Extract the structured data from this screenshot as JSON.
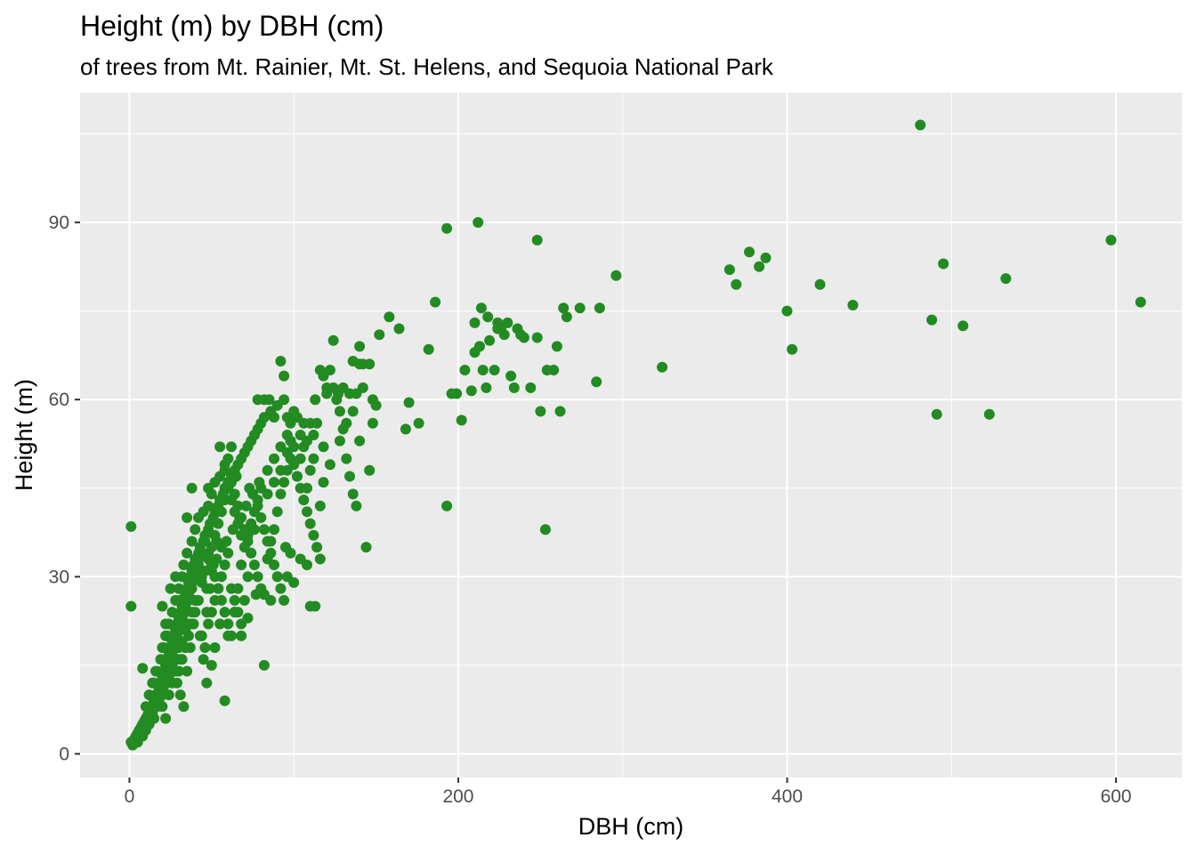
{
  "chart_data": {
    "type": "scatter",
    "title": "Height (m) by DBH (cm)",
    "subtitle": "of trees from Mt. Rainier, Mt. St. Helens, and Sequoia National Park",
    "xlabel": "DBH (cm)",
    "ylabel": "Height (m)",
    "xlim": [
      -30,
      640
    ],
    "ylim": [
      -4,
      112
    ],
    "x_ticks": [
      0,
      200,
      400,
      600
    ],
    "y_ticks": [
      0,
      30,
      60,
      90
    ],
    "x_tick_labels": [
      "0",
      "200",
      "400",
      "600"
    ],
    "y_tick_labels": [
      "0",
      "30",
      "60",
      "90"
    ],
    "grid": true,
    "legend": "none",
    "colors": {
      "point": "#228b22",
      "panel": "#ebebeb",
      "grid": "#ffffff"
    },
    "points": [
      [
        1,
        2
      ],
      [
        2,
        1.5
      ],
      [
        3,
        2.5
      ],
      [
        4,
        3
      ],
      [
        5,
        3.5
      ],
      [
        5,
        2
      ],
      [
        6,
        4
      ],
      [
        7,
        4.5
      ],
      [
        8,
        5
      ],
      [
        8,
        3
      ],
      [
        9,
        5.5
      ],
      [
        10,
        6
      ],
      [
        10,
        4
      ],
      [
        11,
        6.5
      ],
      [
        12,
        7
      ],
      [
        12,
        5
      ],
      [
        13,
        8
      ],
      [
        14,
        7
      ],
      [
        15,
        9
      ],
      [
        15,
        6
      ],
      [
        16,
        10
      ],
      [
        17,
        8
      ],
      [
        18,
        11
      ],
      [
        18,
        9
      ],
      [
        19,
        12
      ],
      [
        20,
        13
      ],
      [
        20,
        10
      ],
      [
        21,
        14
      ],
      [
        22,
        15
      ],
      [
        22,
        12
      ],
      [
        23,
        16
      ],
      [
        24,
        17
      ],
      [
        24,
        13
      ],
      [
        25,
        18
      ],
      [
        26,
        19
      ],
      [
        26,
        15
      ],
      [
        27,
        20
      ],
      [
        28,
        21
      ],
      [
        28,
        16
      ],
      [
        29,
        22
      ],
      [
        30,
        23
      ],
      [
        30,
        18
      ],
      [
        31,
        24
      ],
      [
        32,
        25
      ],
      [
        32,
        19
      ],
      [
        33,
        26
      ],
      [
        34,
        27
      ],
      [
        34,
        21
      ],
      [
        35,
        28
      ],
      [
        36,
        29
      ],
      [
        36,
        22
      ],
      [
        37,
        30
      ],
      [
        38,
        31
      ],
      [
        38,
        24
      ],
      [
        39,
        32
      ],
      [
        40,
        33
      ],
      [
        40,
        26
      ],
      [
        42,
        34
      ],
      [
        43,
        35
      ],
      [
        44,
        30
      ],
      [
        45,
        36
      ],
      [
        46,
        37
      ],
      [
        47,
        28
      ],
      [
        48,
        38
      ],
      [
        49,
        39
      ],
      [
        50,
        31
      ],
      [
        51,
        40
      ],
      [
        52,
        41
      ],
      [
        53,
        33
      ],
      [
        54,
        42
      ],
      [
        55,
        43
      ],
      [
        56,
        35
      ],
      [
        57,
        44
      ],
      [
        58,
        45
      ],
      [
        59,
        36
      ],
      [
        60,
        46
      ],
      [
        62,
        47
      ],
      [
        63,
        38
      ],
      [
        64,
        48
      ],
      [
        66,
        49
      ],
      [
        67,
        40
      ],
      [
        68,
        50
      ],
      [
        70,
        51
      ],
      [
        71,
        42
      ],
      [
        72,
        52
      ],
      [
        74,
        53
      ],
      [
        75,
        44
      ],
      [
        76,
        54
      ],
      [
        78,
        55
      ],
      [
        79,
        46
      ],
      [
        80,
        56
      ],
      [
        82,
        57
      ],
      [
        84,
        48
      ],
      [
        86,
        58
      ],
      [
        88,
        50
      ],
      [
        90,
        59
      ],
      [
        92,
        52
      ],
      [
        94,
        60
      ],
      [
        96,
        54
      ],
      [
        98,
        56
      ],
      [
        100,
        58
      ],
      [
        102,
        47
      ],
      [
        104,
        50
      ],
      [
        106,
        52
      ],
      [
        108,
        45
      ],
      [
        110,
        48
      ],
      [
        112,
        54
      ],
      [
        114,
        56
      ],
      [
        116,
        42
      ],
      [
        118,
        46
      ],
      [
        120,
        61
      ],
      [
        122,
        65
      ],
      [
        124,
        62
      ],
      [
        126,
        60
      ],
      [
        128,
        58
      ],
      [
        130,
        55
      ],
      [
        132,
        50
      ],
      [
        134,
        47
      ],
      [
        136,
        44
      ],
      [
        138,
        42
      ],
      [
        140,
        66
      ],
      [
        142,
        62
      ],
      [
        144,
        35
      ],
      [
        146,
        48
      ],
      [
        148,
        56
      ],
      [
        20,
        25
      ],
      [
        22,
        22
      ],
      [
        25,
        28
      ],
      [
        28,
        30
      ],
      [
        30,
        26
      ],
      [
        33,
        32
      ],
      [
        35,
        34
      ],
      [
        38,
        36
      ],
      [
        40,
        38
      ],
      [
        42,
        40
      ],
      [
        45,
        41
      ],
      [
        48,
        42
      ],
      [
        50,
        44
      ],
      [
        52,
        46
      ],
      [
        55,
        47
      ],
      [
        58,
        48
      ],
      [
        60,
        50
      ],
      [
        62,
        46
      ],
      [
        64,
        44
      ],
      [
        66,
        42
      ],
      [
        68,
        40
      ],
      [
        70,
        38
      ],
      [
        72,
        36
      ],
      [
        74,
        34
      ],
      [
        76,
        32
      ],
      [
        78,
        30
      ],
      [
        80,
        28
      ],
      [
        82,
        27
      ],
      [
        84,
        33
      ],
      [
        86,
        36
      ],
      [
        88,
        38
      ],
      [
        90,
        41
      ],
      [
        92,
        44
      ],
      [
        94,
        46
      ],
      [
        96,
        48
      ],
      [
        98,
        50
      ],
      [
        100,
        49
      ],
      [
        102,
        47
      ],
      [
        104,
        45
      ],
      [
        106,
        43
      ],
      [
        108,
        41
      ],
      [
        110,
        39
      ],
      [
        112,
        37
      ],
      [
        114,
        35
      ],
      [
        116,
        33
      ],
      [
        30,
        14
      ],
      [
        32,
        16
      ],
      [
        34,
        18
      ],
      [
        36,
        20
      ],
      [
        38,
        22
      ],
      [
        40,
        24
      ],
      [
        42,
        26
      ],
      [
        44,
        20
      ],
      [
        46,
        18
      ],
      [
        48,
        22
      ],
      [
        50,
        24
      ],
      [
        52,
        26
      ],
      [
        54,
        28
      ],
      [
        56,
        30
      ],
      [
        58,
        32
      ],
      [
        60,
        34
      ],
      [
        62,
        28
      ],
      [
        64,
        26
      ],
      [
        66,
        24
      ],
      [
        68,
        22
      ],
      [
        70,
        26
      ],
      [
        72,
        30
      ],
      [
        74,
        34
      ],
      [
        76,
        38
      ],
      [
        78,
        42
      ],
      [
        80,
        40
      ],
      [
        82,
        38
      ],
      [
        84,
        36
      ],
      [
        86,
        34
      ],
      [
        88,
        32
      ],
      [
        90,
        30
      ],
      [
        92,
        28
      ],
      [
        94,
        26
      ],
      [
        96,
        30
      ],
      [
        98,
        34
      ],
      [
        20,
        18
      ],
      [
        22,
        20
      ],
      [
        24,
        22
      ],
      [
        26,
        24
      ],
      [
        28,
        26
      ],
      [
        30,
        28
      ],
      [
        32,
        30
      ],
      [
        34,
        24
      ],
      [
        36,
        26
      ],
      [
        38,
        28
      ],
      [
        40,
        30
      ],
      [
        42,
        32
      ],
      [
        44,
        34
      ],
      [
        46,
        36
      ],
      [
        48,
        34
      ],
      [
        50,
        32
      ],
      [
        52,
        30
      ],
      [
        54,
        28
      ],
      [
        56,
        26
      ],
      [
        58,
        24
      ],
      [
        60,
        22
      ],
      [
        62,
        20
      ],
      [
        64,
        24
      ],
      [
        66,
        28
      ],
      [
        68,
        32
      ],
      [
        15,
        12
      ],
      [
        17,
        14
      ],
      [
        19,
        16
      ],
      [
        21,
        18
      ],
      [
        23,
        20
      ],
      [
        25,
        14
      ],
      [
        27,
        16
      ],
      [
        29,
        12
      ],
      [
        31,
        10
      ],
      [
        33,
        8
      ],
      [
        35,
        14
      ],
      [
        37,
        18
      ],
      [
        39,
        22
      ],
      [
        41,
        26
      ],
      [
        43,
        20
      ],
      [
        45,
        16
      ],
      [
        47,
        24
      ],
      [
        49,
        28
      ],
      [
        51,
        32
      ],
      [
        53,
        36
      ],
      [
        10,
        8
      ],
      [
        12,
        10
      ],
      [
        14,
        12
      ],
      [
        16,
        14
      ],
      [
        18,
        10
      ],
      [
        20,
        8
      ],
      [
        22,
        6
      ],
      [
        24,
        10
      ],
      [
        26,
        12
      ],
      [
        28,
        14
      ],
      [
        30,
        16
      ],
      [
        8,
        14.5
      ],
      [
        1,
        38.5
      ],
      [
        1,
        25
      ],
      [
        35,
        40
      ],
      [
        38,
        45
      ],
      [
        48,
        45
      ],
      [
        55,
        52
      ],
      [
        58,
        49
      ],
      [
        62,
        52
      ],
      [
        65,
        47
      ],
      [
        73,
        45
      ],
      [
        76,
        54
      ],
      [
        78,
        60
      ],
      [
        82,
        60
      ],
      [
        85,
        60
      ],
      [
        88,
        57
      ],
      [
        92,
        66.5
      ],
      [
        94,
        64
      ],
      [
        96,
        57
      ],
      [
        98,
        53
      ],
      [
        102,
        57
      ],
      [
        106,
        56
      ],
      [
        110,
        56
      ],
      [
        113,
        60
      ],
      [
        116,
        65
      ],
      [
        118,
        64
      ],
      [
        120,
        62
      ],
      [
        124,
        70
      ],
      [
        127,
        61
      ],
      [
        130,
        62
      ],
      [
        134,
        61
      ],
      [
        136,
        66.5
      ],
      [
        138,
        61
      ],
      [
        140,
        69
      ],
      [
        142,
        66
      ],
      [
        146,
        66
      ],
      [
        148,
        60
      ],
      [
        150,
        59
      ],
      [
        152,
        71
      ],
      [
        158,
        74
      ],
      [
        164,
        72
      ],
      [
        168,
        55
      ],
      [
        170,
        59.5
      ],
      [
        176,
        56
      ],
      [
        182,
        68.5
      ],
      [
        186,
        76.5
      ],
      [
        193,
        89
      ],
      [
        212,
        90
      ],
      [
        248,
        87
      ],
      [
        193,
        42
      ],
      [
        253,
        38
      ],
      [
        196,
        61
      ],
      [
        199,
        61
      ],
      [
        202,
        56.5
      ],
      [
        204,
        65
      ],
      [
        208,
        61.5
      ],
      [
        210,
        68
      ],
      [
        213,
        69
      ],
      [
        215,
        65
      ],
      [
        217,
        62
      ],
      [
        219,
        70
      ],
      [
        222,
        65
      ],
      [
        224,
        72
      ],
      [
        226,
        72
      ],
      [
        228,
        71
      ],
      [
        232,
        64
      ],
      [
        234,
        62
      ],
      [
        236,
        72
      ],
      [
        240,
        70.5
      ],
      [
        244,
        62
      ],
      [
        248,
        70.5
      ],
      [
        250,
        58
      ],
      [
        254,
        65
      ],
      [
        258,
        65
      ],
      [
        260,
        69
      ],
      [
        262,
        58
      ],
      [
        264,
        75.5
      ],
      [
        266,
        74
      ],
      [
        274,
        75.5
      ],
      [
        284,
        63
      ],
      [
        286,
        75.5
      ],
      [
        296,
        81
      ],
      [
        210,
        73
      ],
      [
        214,
        75.5
      ],
      [
        218,
        74
      ],
      [
        224,
        73
      ],
      [
        230,
        73
      ],
      [
        238,
        71
      ],
      [
        324,
        65.5
      ],
      [
        365,
        82
      ],
      [
        369,
        79.5
      ],
      [
        377,
        85
      ],
      [
        383,
        82.5
      ],
      [
        387,
        84
      ],
      [
        400,
        75
      ],
      [
        403,
        68.5
      ],
      [
        420,
        79.5
      ],
      [
        440,
        76
      ],
      [
        481,
        106.5
      ],
      [
        488,
        73.5
      ],
      [
        491,
        57.5
      ],
      [
        495,
        83
      ],
      [
        507,
        72.5
      ],
      [
        523,
        57.5
      ],
      [
        533,
        80.5
      ],
      [
        597,
        87
      ],
      [
        615,
        76.5
      ],
      [
        2,
        1.5
      ],
      [
        3,
        2
      ],
      [
        4,
        2.5
      ],
      [
        5,
        3
      ],
      [
        6,
        3.5
      ],
      [
        7,
        3
      ],
      [
        8,
        4
      ],
      [
        9,
        4.5
      ],
      [
        10,
        5
      ],
      [
        11,
        5.5
      ],
      [
        12,
        6
      ],
      [
        13,
        6.5
      ],
      [
        14,
        7.5
      ],
      [
        15,
        8
      ],
      [
        16,
        8.5
      ],
      [
        17,
        9
      ],
      [
        18,
        9.5
      ],
      [
        19,
        10
      ],
      [
        20,
        11
      ],
      [
        21,
        11.5
      ],
      [
        22,
        13
      ],
      [
        23,
        14
      ],
      [
        24,
        15
      ],
      [
        25,
        16
      ],
      [
        26,
        17
      ],
      [
        27,
        18
      ],
      [
        28,
        19
      ],
      [
        29,
        20
      ],
      [
        30,
        21
      ],
      [
        31,
        22
      ],
      [
        32,
        23
      ],
      [
        33,
        24
      ],
      [
        34,
        25
      ],
      [
        35,
        26
      ],
      [
        36,
        27
      ],
      [
        37,
        28
      ],
      [
        38,
        29
      ],
      [
        39,
        30
      ],
      [
        40,
        31
      ],
      [
        41,
        32
      ],
      [
        42,
        33
      ],
      [
        44,
        29
      ],
      [
        46,
        31
      ],
      [
        48,
        33
      ],
      [
        50,
        35
      ],
      [
        52,
        37
      ],
      [
        54,
        39
      ],
      [
        56,
        41
      ],
      [
        58,
        43
      ],
      [
        60,
        45
      ],
      [
        62,
        43
      ],
      [
        64,
        41
      ],
      [
        66,
        39
      ],
      [
        68,
        37
      ],
      [
        70,
        35
      ],
      [
        72,
        37
      ],
      [
        74,
        39
      ],
      [
        76,
        41
      ],
      [
        78,
        43
      ],
      [
        80,
        45
      ],
      [
        84,
        44
      ],
      [
        88,
        46
      ],
      [
        92,
        48
      ],
      [
        96,
        51
      ],
      [
        100,
        52
      ],
      [
        104,
        54
      ],
      [
        108,
        53
      ],
      [
        112,
        50
      ],
      [
        118,
        52
      ],
      [
        122,
        49
      ],
      [
        128,
        53
      ],
      [
        132,
        56
      ],
      [
        136,
        58
      ],
      [
        140,
        53
      ],
      [
        47,
        12
      ],
      [
        50,
        15
      ],
      [
        52,
        18
      ],
      [
        55,
        22
      ],
      [
        58,
        9
      ],
      [
        60,
        20
      ],
      [
        64,
        24
      ],
      [
        68,
        20
      ],
      [
        72,
        23
      ],
      [
        77,
        27
      ],
      [
        82,
        15
      ],
      [
        86,
        26
      ],
      [
        90,
        30
      ],
      [
        95,
        35
      ],
      [
        100,
        29
      ],
      [
        104,
        33
      ],
      [
        108,
        32
      ],
      [
        110,
        25
      ],
      [
        113,
        25
      ]
    ]
  }
}
